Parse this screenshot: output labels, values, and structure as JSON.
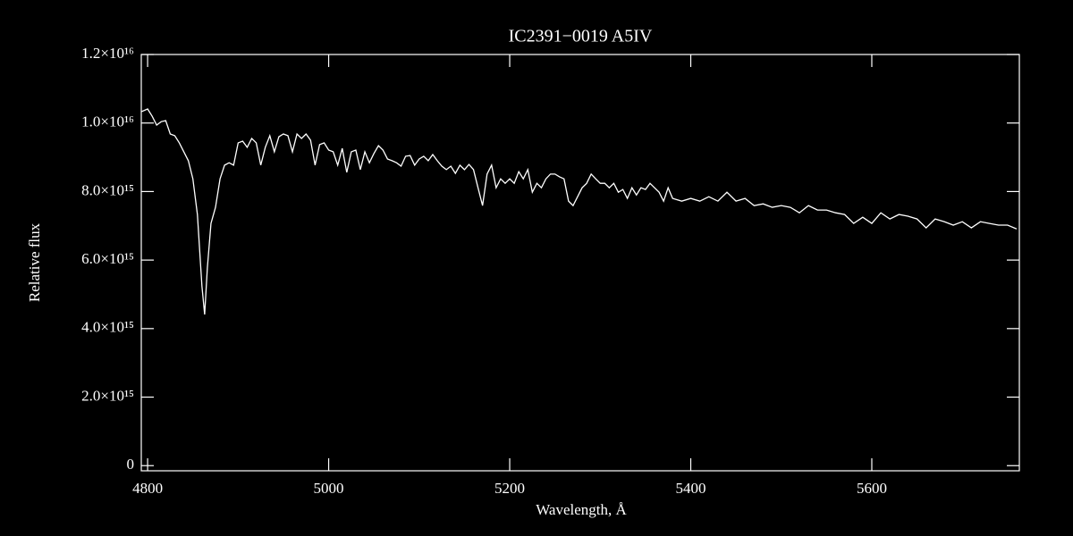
{
  "chart_data": {
    "type": "line",
    "title": "IC2391−0019   A5IV",
    "xlabel": "Wavelength, Å",
    "ylabel": "Relative flux",
    "color": "#ffffff",
    "xlim": [
      4793,
      5763
    ],
    "ylim": [
      -150000000000000.0,
      1.2e+16
    ],
    "xticks": [
      4800,
      5000,
      5200,
      5400,
      5600
    ],
    "yticks": [
      0,
      {
        "value": 2000000000000000.0,
        "label": "2.0×10¹⁵"
      },
      {
        "value": 4000000000000000.0,
        "label": "4.0×10¹⁵"
      },
      {
        "value": 6000000000000000.0,
        "label": "6.0×10¹⁵"
      },
      {
        "value": 8000000000000000.0,
        "label": "8.0×10¹⁵"
      },
      {
        "value": 1e+16,
        "label": "1.0×10¹⁶"
      },
      {
        "value": 1.2e+16,
        "label": "1.2×10¹⁶"
      }
    ],
    "x": [
      4793,
      4800,
      4805,
      4810,
      4815,
      4820,
      4825,
      4830,
      4835,
      4840,
      4845,
      4850,
      4855,
      4860,
      4863,
      4866,
      4870,
      4875,
      4880,
      4885,
      4890,
      4895,
      4900,
      4905,
      4910,
      4915,
      4920,
      4925,
      4930,
      4935,
      4940,
      4945,
      4950,
      4955,
      4960,
      4965,
      4970,
      4975,
      4980,
      4985,
      4990,
      4995,
      5000,
      5005,
      5010,
      5015,
      5020,
      5025,
      5030,
      5035,
      5040,
      5045,
      5050,
      5055,
      5060,
      5065,
      5070,
      5075,
      5080,
      5085,
      5090,
      5095,
      5100,
      5105,
      5110,
      5115,
      5120,
      5125,
      5130,
      5135,
      5140,
      5145,
      5150,
      5155,
      5160,
      5165,
      5170,
      5175,
      5180,
      5185,
      5190,
      5195,
      5200,
      5205,
      5210,
      5215,
      5220,
      5225,
      5230,
      5235,
      5240,
      5245,
      5250,
      5255,
      5260,
      5265,
      5270,
      5275,
      5280,
      5285,
      5290,
      5295,
      5300,
      5305,
      5310,
      5315,
      5320,
      5325,
      5330,
      5335,
      5340,
      5345,
      5350,
      5355,
      5360,
      5365,
      5370,
      5375,
      5380,
      5390,
      5400,
      5410,
      5420,
      5430,
      5440,
      5450,
      5460,
      5470,
      5480,
      5490,
      5500,
      5510,
      5520,
      5530,
      5540,
      5550,
      5560,
      5570,
      5580,
      5590,
      5600,
      5610,
      5620,
      5630,
      5640,
      5650,
      5660,
      5670,
      5680,
      5690,
      5700,
      5710,
      5720,
      5730,
      5740,
      5750,
      5760
    ],
    "values": [
      1.033e+16,
      1.041e+16,
      1.02e+16,
      9940000000000000.0,
      1.004e+16,
      1.007e+16,
      9680000000000000.0,
      9630000000000000.0,
      9420000000000000.0,
      9160000000000000.0,
      8900000000000000.0,
      8370000000000000.0,
      7330000000000000.0,
      5240000000000000.0,
      4410000000000000.0,
      5770000000000000.0,
      7070000000000000.0,
      7540000000000000.0,
      8370000000000000.0,
      8770000000000000.0,
      8840000000000000.0,
      8770000000000000.0,
      9420000000000000.0,
      9470000000000000.0,
      9290000000000000.0,
      9550000000000000.0,
      9420000000000000.0,
      8770000000000000.0,
      9290000000000000.0,
      9630000000000000.0,
      9160000000000000.0,
      9600000000000000.0,
      9680000000000000.0,
      9630000000000000.0,
      9160000000000000.0,
      9680000000000000.0,
      9550000000000000.0,
      9680000000000000.0,
      9500000000000000.0,
      8770000000000000.0,
      9370000000000000.0,
      9420000000000000.0,
      9210000000000000.0,
      9160000000000000.0,
      8770000000000000.0,
      9260000000000000.0,
      8560000000000000.0,
      9160000000000000.0,
      9210000000000000.0,
      8640000000000000.0,
      9160000000000000.0,
      8840000000000000.0,
      9110000000000000.0,
      9340000000000000.0,
      9210000000000000.0,
      8950000000000000.0,
      8900000000000000.0,
      8840000000000000.0,
      8740000000000000.0,
      9030000000000000.0,
      9050000000000000.0,
      8770000000000000.0,
      8950000000000000.0,
      9030000000000000.0,
      8900000000000000.0,
      9080000000000000.0,
      8900000000000000.0,
      8740000000000000.0,
      8640000000000000.0,
      8740000000000000.0,
      8530000000000000.0,
      8770000000000000.0,
      8640000000000000.0,
      8790000000000000.0,
      8640000000000000.0,
      8110000000000000.0,
      7590000000000000.0,
      8510000000000000.0,
      8770000000000000.0,
      8110000000000000.0,
      8370000000000000.0,
      8240000000000000.0,
      8370000000000000.0,
      8240000000000000.0,
      8580000000000000.0,
      8370000000000000.0,
      8640000000000000.0,
      7980000000000000.0,
      8240000000000000.0,
      8110000000000000.0,
      8370000000000000.0,
      8510000000000000.0,
      8510000000000000.0,
      8430000000000000.0,
      8370000000000000.0,
      7720000000000000.0,
      7590000000000000.0,
      7850000000000000.0,
      8110000000000000.0,
      8240000000000000.0,
      8510000000000000.0,
      8370000000000000.0,
      8240000000000000.0,
      8240000000000000.0,
      8110000000000000.0,
      8240000000000000.0,
      7980000000000000.0,
      8060000000000000.0,
      7800000000000000.0,
      8110000000000000.0,
      7900000000000000.0,
      8110000000000000.0,
      8060000000000000.0,
      8240000000000000.0,
      8110000000000000.0,
      7980000000000000.0,
      7720000000000000.0,
      8110000000000000.0,
      7800000000000000.0,
      7720000000000000.0,
      7800000000000000.0,
      7720000000000000.0,
      7850000000000000.0,
      7720000000000000.0,
      7980000000000000.0,
      7720000000000000.0,
      7800000000000000.0,
      7590000000000000.0,
      7640000000000000.0,
      7540000000000000.0,
      7590000000000000.0,
      7540000000000000.0,
      7380000000000000.0,
      7590000000000000.0,
      7460000000000000.0,
      7460000000000000.0,
      7380000000000000.0,
      7330000000000000.0,
      7070000000000000.0,
      7250000000000000.0,
      7070000000000000.0,
      7380000000000000.0,
      7200000000000000.0,
      7330000000000000.0,
      7280000000000000.0,
      7200000000000000.0,
      6940000000000000.0,
      7200000000000000.0,
      7120000000000000.0,
      7020000000000000.0,
      7120000000000000.0,
      6940000000000000.0,
      7120000000000000.0,
      7070000000000000.0,
      7020000000000000.0,
      7020000000000000.0,
      6910000000000000.0
    ]
  }
}
